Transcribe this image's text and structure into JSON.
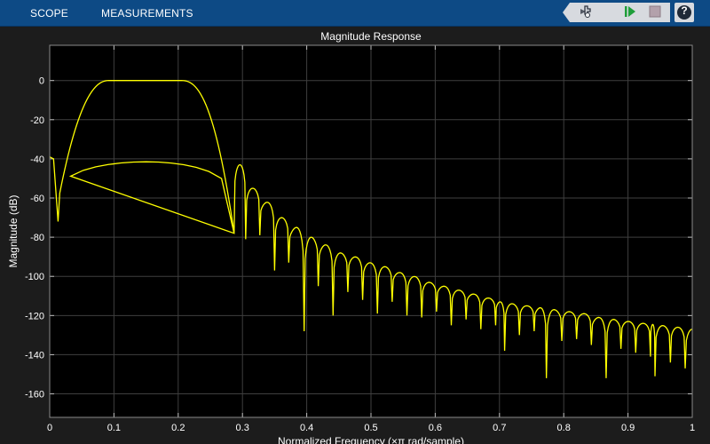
{
  "toolstrip": {
    "tabs": [
      {
        "label": "SCOPE"
      },
      {
        "label": "MEASUREMENTS"
      }
    ],
    "quick_access": [
      "tools-icon",
      "run-icon",
      "stop-icon"
    ],
    "help_label": "?"
  },
  "colors": {
    "toolstrip_bg": "#0d4a85",
    "axes_bg": "#000000",
    "figure_bg": "#1c1c1c",
    "grid": "#3f3f3f",
    "trace": "#ffff00",
    "text": "#ffffff"
  },
  "chart_data": {
    "type": "line",
    "title": "Magnitude Response",
    "xlabel": "Normalized Frequency (×π rad/sample)",
    "ylabel": "Magnitude (dB)",
    "xlim": [
      0,
      1
    ],
    "ylim": [
      -172,
      18
    ],
    "grid": true,
    "xticks": [
      0,
      0.1,
      0.2,
      0.3,
      0.4,
      0.5,
      0.6,
      0.7,
      0.8,
      0.9,
      1
    ],
    "xtick_labels": [
      "0",
      "0.1",
      "0.2",
      "0.3",
      "0.4",
      "0.5",
      "0.6",
      "0.7",
      "0.8",
      "0.9",
      "1"
    ],
    "yticks": [
      0,
      -20,
      -40,
      -60,
      -80,
      -100,
      -120,
      -140,
      -160
    ],
    "ytick_labels": [
      "0",
      "-20",
      "-40",
      "-60",
      "-80",
      "-100",
      "-120",
      "-140",
      "-160"
    ],
    "series": [
      {
        "color": "#ffff00",
        "passband": {
          "edges": [
            0.013,
            0.287
          ],
          "ripple_db": 0
        },
        "nulls": [
          [
            0.013,
            -72
          ],
          [
            0.287,
            -78
          ],
          [
            0.305,
            -81
          ],
          [
            0.327,
            -79
          ],
          [
            0.35,
            -97
          ],
          [
            0.372,
            -93
          ],
          [
            0.396,
            -128
          ],
          [
            0.418,
            -105
          ],
          [
            0.441,
            -120
          ],
          [
            0.464,
            -108
          ],
          [
            0.487,
            -112
          ],
          [
            0.51,
            -119
          ],
          [
            0.533,
            -113
          ],
          [
            0.556,
            -120
          ],
          [
            0.579,
            -121
          ],
          [
            0.602,
            -118
          ],
          [
            0.625,
            -125
          ],
          [
            0.648,
            -122
          ],
          [
            0.671,
            -127
          ],
          [
            0.694,
            -125
          ],
          [
            0.708,
            -138
          ],
          [
            0.731,
            -130
          ],
          [
            0.754,
            -128
          ],
          [
            0.773,
            -152
          ],
          [
            0.797,
            -133
          ],
          [
            0.82,
            -132
          ],
          [
            0.843,
            -135
          ],
          [
            0.866,
            -152
          ],
          [
            0.889,
            -137
          ],
          [
            0.912,
            -139
          ],
          [
            0.935,
            -141
          ],
          [
            0.942,
            -151
          ],
          [
            0.966,
            -144
          ],
          [
            0.989,
            -147
          ]
        ],
        "stopband_lobes": [
          [
            0.006,
            -40
          ],
          [
            0.296,
            -43
          ],
          [
            0.316,
            -55
          ],
          [
            0.338,
            -62
          ],
          [
            0.361,
            -70
          ],
          [
            0.384,
            -75
          ],
          [
            0.407,
            -80
          ],
          [
            0.43,
            -84
          ],
          [
            0.452,
            -88
          ],
          [
            0.475,
            -90
          ],
          [
            0.498,
            -93
          ],
          [
            0.521,
            -95
          ],
          [
            0.544,
            -98
          ],
          [
            0.567,
            -100
          ],
          [
            0.59,
            -103
          ],
          [
            0.613,
            -105
          ],
          [
            0.636,
            -107
          ],
          [
            0.659,
            -109
          ],
          [
            0.682,
            -111
          ],
          [
            0.701,
            -113
          ],
          [
            0.72,
            -114
          ],
          [
            0.742,
            -115
          ],
          [
            0.763,
            -116
          ],
          [
            0.785,
            -117
          ],
          [
            0.808,
            -118
          ],
          [
            0.831,
            -119
          ],
          [
            0.855,
            -121
          ],
          [
            0.878,
            -122
          ],
          [
            0.9,
            -123
          ],
          [
            0.924,
            -124
          ],
          [
            0.95,
            -125
          ],
          [
            0.978,
            -126
          ],
          [
            1.0,
            -127
          ]
        ]
      }
    ]
  }
}
